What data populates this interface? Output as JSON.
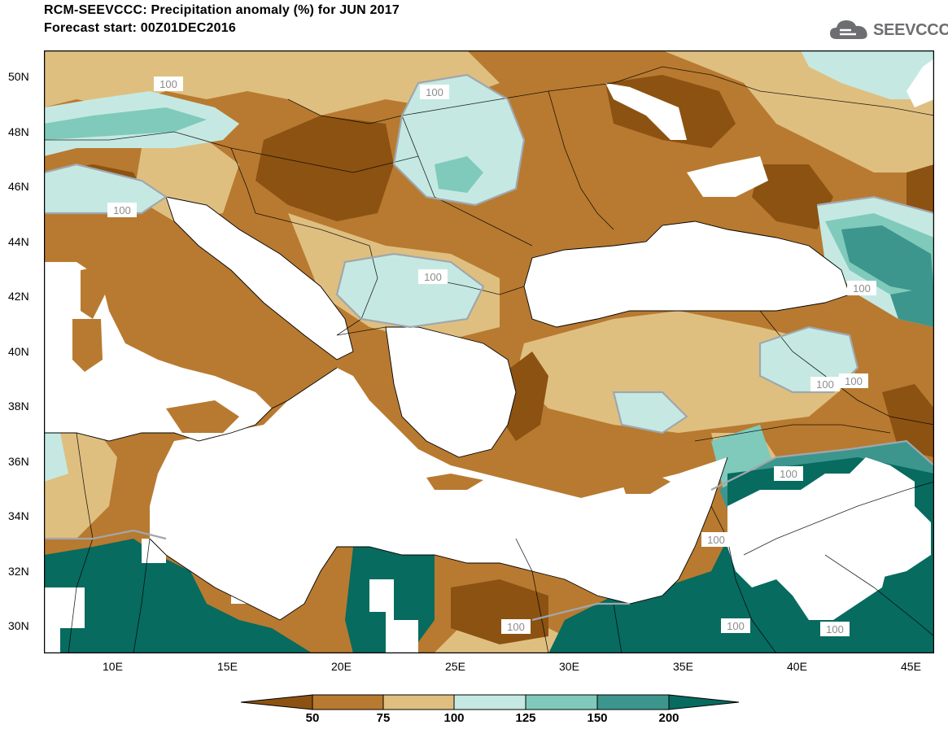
{
  "title_line1": "RCM-SEEVCCC: Precipitation anomaly (%) for JUN 2017",
  "title_line2": "Forecast start: 00Z01DEC2016",
  "logo_text": "SEEVCCC",
  "lat_labels": [
    "50N",
    "48N",
    "46N",
    "44N",
    "42N",
    "40N",
    "38N",
    "36N",
    "34N",
    "32N",
    "30N"
  ],
  "lon_labels": [
    "10E",
    "15E",
    "20E",
    "25E",
    "30E",
    "35E",
    "40E",
    "45E"
  ],
  "contour_label": "100",
  "colorbar": {
    "labels": [
      "50",
      "75",
      "100",
      "125",
      "150",
      "200"
    ],
    "colors": [
      "#8c5212",
      "#b87a30",
      "#dfbf80",
      "#c5e9e2",
      "#7fcabb",
      "#3c968d",
      "#076b5f"
    ]
  },
  "map_colors": {
    "sea": "#ffffff",
    "lt50": "#8c5212",
    "50_75": "#b87a30",
    "75_100": "#dfbf80",
    "100_125": "#c5e9e2",
    "125_150": "#7fcabb",
    "150_200": "#3c968d",
    "gt200": "#076b5f"
  }
}
